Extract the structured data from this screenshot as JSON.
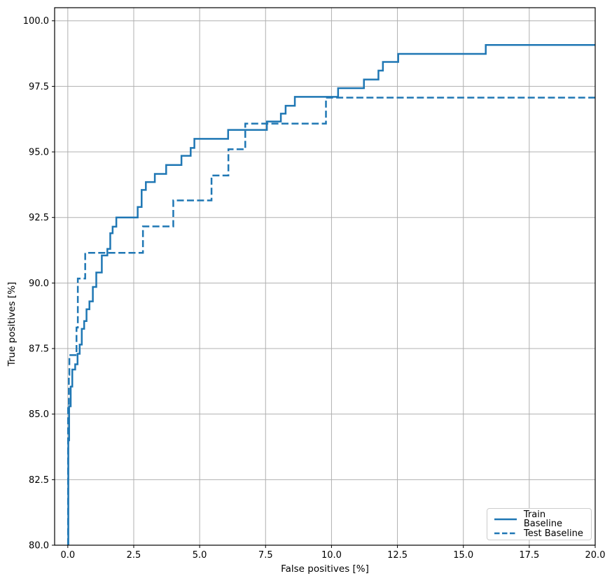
{
  "chart_data": {
    "type": "line",
    "subtype": "roc-step-curves",
    "title": "",
    "xlabel": "False positives [%]",
    "ylabel": "True positives [%]",
    "xlim": [
      -0.5,
      20
    ],
    "ylim": [
      80,
      100.5
    ],
    "xticks": [
      0,
      2.5,
      5,
      7.5,
      10,
      12.5,
      15,
      17.5,
      20
    ],
    "xtick_labels": [
      "0.0",
      "2.5",
      "5.0",
      "7.5",
      "10.0",
      "12.5",
      "15.0",
      "17.5",
      "20.0"
    ],
    "yticks": [
      80,
      82.5,
      85,
      87.5,
      90,
      92.5,
      95,
      97.5,
      100
    ],
    "ytick_labels": [
      "80.0",
      "82.5",
      "85.0",
      "87.5",
      "90.0",
      "92.5",
      "95.0",
      "97.5",
      "100.0"
    ],
    "grid": true,
    "legend": {
      "position": "lower right",
      "entries": [
        {
          "label": "Train Baseline",
          "style": "solid"
        },
        {
          "label": "Test Baseline",
          "style": "dashed"
        }
      ]
    },
    "colors": {
      "line": "#1f77b4",
      "grid": "#b0b0b0",
      "spine": "#000000",
      "text": "#000000",
      "legend_border": "#cccccc"
    },
    "series": [
      {
        "name": "Train Baseline",
        "line_style": "solid",
        "color": "#1f77b4",
        "points": [
          [
            0.02,
            80.0
          ],
          [
            0.02,
            84.0
          ],
          [
            0.05,
            84.0
          ],
          [
            0.05,
            85.3
          ],
          [
            0.11,
            85.3
          ],
          [
            0.11,
            86.05
          ],
          [
            0.17,
            86.05
          ],
          [
            0.17,
            86.7
          ],
          [
            0.28,
            86.7
          ],
          [
            0.28,
            86.9
          ],
          [
            0.37,
            86.9
          ],
          [
            0.37,
            87.3
          ],
          [
            0.45,
            87.3
          ],
          [
            0.45,
            87.65
          ],
          [
            0.53,
            87.65
          ],
          [
            0.53,
            88.25
          ],
          [
            0.62,
            88.25
          ],
          [
            0.62,
            88.55
          ],
          [
            0.71,
            88.55
          ],
          [
            0.71,
            89.0
          ],
          [
            0.82,
            89.0
          ],
          [
            0.82,
            89.3
          ],
          [
            0.95,
            89.3
          ],
          [
            0.95,
            89.85
          ],
          [
            1.08,
            89.85
          ],
          [
            1.08,
            90.4
          ],
          [
            1.29,
            90.4
          ],
          [
            1.29,
            91.05
          ],
          [
            1.5,
            91.05
          ],
          [
            1.5,
            91.3
          ],
          [
            1.61,
            91.3
          ],
          [
            1.61,
            91.9
          ],
          [
            1.7,
            91.9
          ],
          [
            1.7,
            92.15
          ],
          [
            1.84,
            92.15
          ],
          [
            1.84,
            92.5
          ],
          [
            2.65,
            92.5
          ],
          [
            2.65,
            92.9
          ],
          [
            2.8,
            92.9
          ],
          [
            2.8,
            93.55
          ],
          [
            2.96,
            93.55
          ],
          [
            2.96,
            93.85
          ],
          [
            3.3,
            93.85
          ],
          [
            3.3,
            94.16
          ],
          [
            3.73,
            94.16
          ],
          [
            3.73,
            94.5
          ],
          [
            4.31,
            94.5
          ],
          [
            4.31,
            94.85
          ],
          [
            4.66,
            94.85
          ],
          [
            4.66,
            95.15
          ],
          [
            4.8,
            95.15
          ],
          [
            4.8,
            95.5
          ],
          [
            6.08,
            95.5
          ],
          [
            6.08,
            95.84
          ],
          [
            7.55,
            95.84
          ],
          [
            7.55,
            96.16
          ],
          [
            8.08,
            96.16
          ],
          [
            8.08,
            96.46
          ],
          [
            8.26,
            96.46
          ],
          [
            8.26,
            96.76
          ],
          [
            8.61,
            96.76
          ],
          [
            8.61,
            97.1
          ],
          [
            10.25,
            97.1
          ],
          [
            10.25,
            97.43
          ],
          [
            11.23,
            97.43
          ],
          [
            11.23,
            97.76
          ],
          [
            11.78,
            97.76
          ],
          [
            11.78,
            98.1
          ],
          [
            11.95,
            98.1
          ],
          [
            11.95,
            98.43
          ],
          [
            12.53,
            98.43
          ],
          [
            12.53,
            98.74
          ],
          [
            15.85,
            98.74
          ],
          [
            15.85,
            99.08
          ],
          [
            20.0,
            99.08
          ]
        ]
      },
      {
        "name": "Test Baseline",
        "line_style": "dashed",
        "color": "#1f77b4",
        "points": [
          [
            0.01,
            80.0
          ],
          [
            0.01,
            85.3
          ],
          [
            0.04,
            85.3
          ],
          [
            0.04,
            86.5
          ],
          [
            0.06,
            86.5
          ],
          [
            0.06,
            87.25
          ],
          [
            0.33,
            87.25
          ],
          [
            0.33,
            88.3
          ],
          [
            0.38,
            88.3
          ],
          [
            0.38,
            90.17
          ],
          [
            0.66,
            90.17
          ],
          [
            0.66,
            91.15
          ],
          [
            2.85,
            91.15
          ],
          [
            2.85,
            92.16
          ],
          [
            4.0,
            92.16
          ],
          [
            4.0,
            93.15
          ],
          [
            5.45,
            93.15
          ],
          [
            5.45,
            94.1
          ],
          [
            6.09,
            94.1
          ],
          [
            6.09,
            95.1
          ],
          [
            6.73,
            95.1
          ],
          [
            6.73,
            96.08
          ],
          [
            9.79,
            96.08
          ],
          [
            9.79,
            97.07
          ],
          [
            20.0,
            97.07
          ]
        ]
      }
    ]
  }
}
